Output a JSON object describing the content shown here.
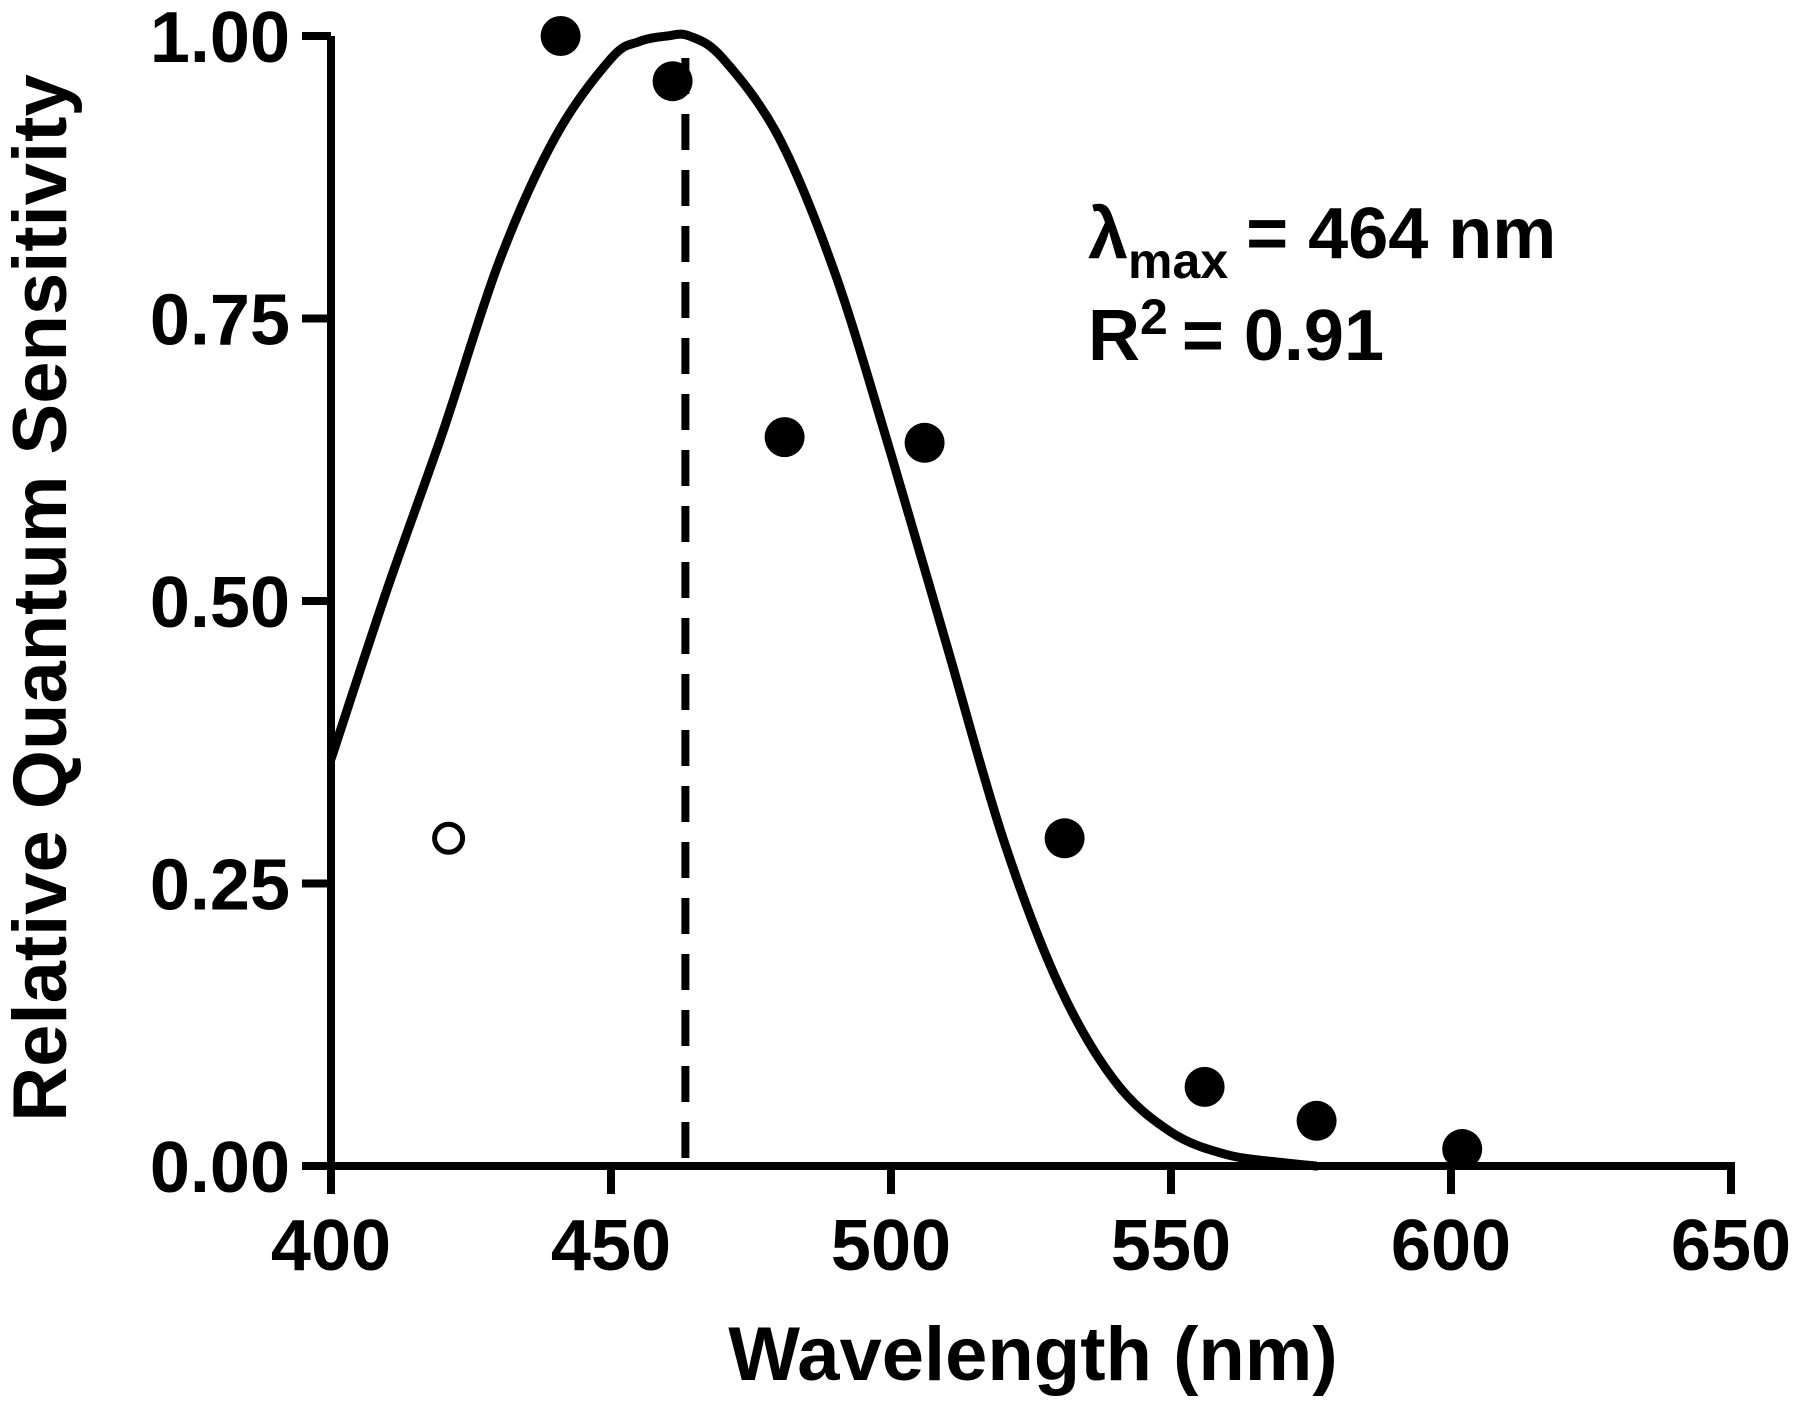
{
  "chart_data": {
    "type": "scatter",
    "xlabel": "Wavelength (nm)",
    "ylabel": "Relative Quantum Sensitivity",
    "xlim": [
      400,
      650
    ],
    "ylim": [
      0,
      1
    ],
    "x_ticks": [
      "400",
      "450",
      "500",
      "550",
      "600",
      "650"
    ],
    "y_ticks": [
      "0.00",
      "0.25",
      "0.50",
      "0.75",
      "1.00"
    ],
    "points_filled": [
      {
        "x": 441,
        "y": 1.0
      },
      {
        "x": 461,
        "y": 0.96
      },
      {
        "x": 481,
        "y": 0.645
      },
      {
        "x": 506,
        "y": 0.64
      },
      {
        "x": 531,
        "y": 0.29
      },
      {
        "x": 556,
        "y": 0.07
      },
      {
        "x": 576,
        "y": 0.04
      },
      {
        "x": 602,
        "y": 0.015
      }
    ],
    "points_open": [
      {
        "x": 421,
        "y": 0.29
      }
    ],
    "fit_curve": {
      "lambda_max": 464,
      "x": [
        400,
        410,
        420,
        430,
        440,
        450,
        455,
        460,
        464,
        470,
        480,
        490,
        500,
        510,
        520,
        530,
        540,
        550,
        560,
        570,
        576
      ],
      "y": [
        0.36,
        0.51,
        0.65,
        0.8,
        0.91,
        0.98,
        0.995,
        1.0,
        1.0,
        0.98,
        0.91,
        0.79,
        0.63,
        0.46,
        0.29,
        0.16,
        0.075,
        0.03,
        0.01,
        0.003,
        0.0
      ]
    },
    "peak_marker": {
      "x": 464
    },
    "annotations": {
      "lambda_symbol": "λ",
      "lambda_sub": "max",
      "lambda_value": "= 464 nm",
      "r2_label": "R",
      "r2_sup": "2",
      "r2_value": "= 0.91"
    }
  }
}
